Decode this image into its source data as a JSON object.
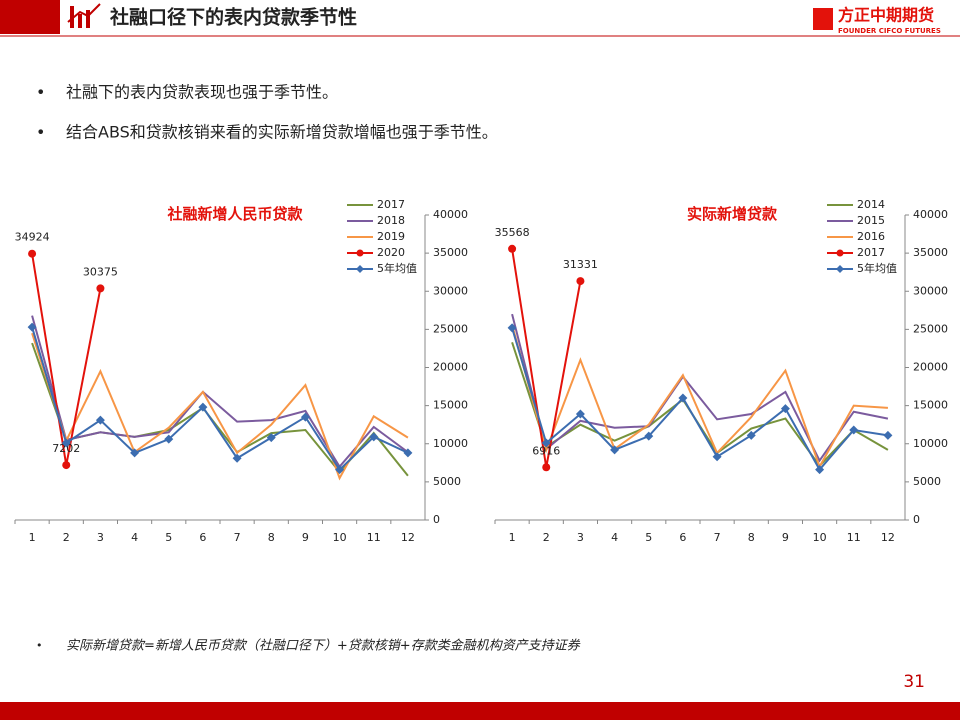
{
  "header": {
    "title": "社融口径下的表内贷款季节性",
    "logo_cn": "方正中期期货",
    "logo_en": "FOUNDER CIFCO FUTURES"
  },
  "bullets": [
    "社融下的表内贷款表现也强于季节性。",
    "结合ABS和贷款核销来看的实际新增贷款增幅也强于季节性。"
  ],
  "chart_data": [
    {
      "type": "line",
      "title": "社融新增人民币贷款",
      "categories": [
        "1",
        "2",
        "3",
        "4",
        "5",
        "6",
        "7",
        "8",
        "9",
        "10",
        "11",
        "12"
      ],
      "ylim": [
        0,
        40000
      ],
      "yticks": [
        0,
        5000,
        10000,
        15000,
        20000,
        25000,
        30000,
        35000,
        40000
      ],
      "legend": "upper right",
      "series": [
        {
          "name": "2017",
          "color": "#77933c",
          "marker": "none",
          "values": [
            23200,
            10500,
            11500,
            10900,
            11800,
            14700,
            8900,
            11400,
            11800,
            6300,
            11400,
            5800
          ]
        },
        {
          "name": "2018",
          "color": "#7b5b9e",
          "marker": "none",
          "values": [
            26800,
            10500,
            11500,
            10900,
            11500,
            16800,
            12900,
            13100,
            14300,
            7000,
            12200,
            8900
          ]
        },
        {
          "name": "2019",
          "color": "#f79646",
          "marker": "none",
          "values": [
            24500,
            10400,
            19500,
            8900,
            12100,
            16800,
            8800,
            12500,
            17700,
            5500,
            13600,
            10800
          ]
        },
        {
          "name": "2020",
          "color": "#e3120b",
          "marker": "circle",
          "values": [
            34924,
            7202,
            30375,
            null,
            null,
            null,
            null,
            null,
            null,
            null,
            null,
            null
          ]
        },
        {
          "name": "5年均值",
          "color": "#3c6db0",
          "marker": "diamond",
          "values": [
            25300,
            10100,
            13100,
            8800,
            10600,
            14800,
            8100,
            10800,
            13500,
            6600,
            10900,
            8800
          ]
        }
      ]
    },
    {
      "type": "line",
      "title": "实际新增贷款",
      "categories": [
        "1",
        "2",
        "3",
        "4",
        "5",
        "6",
        "7",
        "8",
        "9",
        "10",
        "11",
        "12"
      ],
      "ylim": [
        0,
        40000
      ],
      "yticks": [
        0,
        5000,
        10000,
        15000,
        20000,
        25000,
        30000,
        35000,
        40000
      ],
      "legend": "upper right",
      "series": [
        {
          "name": "2014",
          "color": "#77933c",
          "marker": "none",
          "values": [
            23300,
            9600,
            12500,
            10400,
            12300,
            15800,
            8800,
            12000,
            13300,
            7100,
            11800,
            9200
          ]
        },
        {
          "name": "2015",
          "color": "#7b5b9e",
          "marker": "none",
          "values": [
            27000,
            9300,
            13000,
            12100,
            12300,
            18800,
            13200,
            13900,
            16800,
            7800,
            14200,
            13300
          ]
        },
        {
          "name": "2016",
          "color": "#f79646",
          "marker": "none",
          "values": [
            25600,
            9200,
            21000,
            9300,
            12500,
            19000,
            8800,
            13500,
            19600,
            7000,
            15000,
            14700
          ]
        },
        {
          "name": "2017",
          "color": "#e3120b",
          "marker": "circle",
          "values": [
            35568,
            6916,
            31331,
            null,
            null,
            null,
            null,
            null,
            null,
            null,
            null,
            null
          ]
        },
        {
          "name": "5年均值",
          "color": "#3c6db0",
          "marker": "diamond",
          "values": [
            25200,
            10100,
            13900,
            9200,
            11000,
            16000,
            8300,
            11100,
            14600,
            6600,
            11800,
            11100
          ]
        }
      ]
    }
  ],
  "footnote": "实际新增贷款=新增人民币贷款（社融口径下）+贷款核销+存款类金融机构资产支持证券",
  "page_number": "31"
}
